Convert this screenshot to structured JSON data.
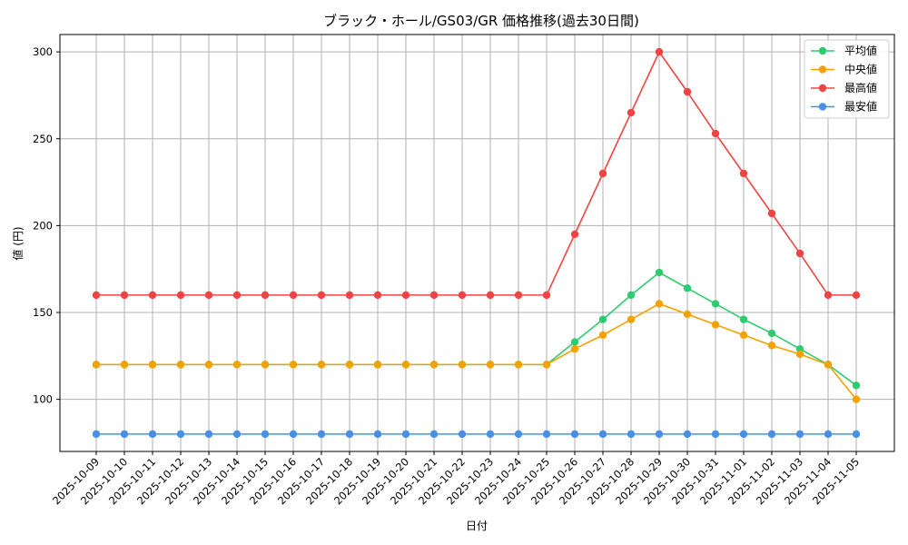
{
  "chart_data": {
    "type": "line",
    "title": "ブラック・ホール/GS03/GR 価格推移(過去30日間)",
    "xlabel": "日付",
    "ylabel": "値 (円)",
    "ylim": [
      70,
      310
    ],
    "yticks": [
      100,
      150,
      200,
      250,
      300
    ],
    "grid": true,
    "legend_position": "top-right",
    "categories": [
      "2025-10-09",
      "2025-10-10",
      "2025-10-11",
      "2025-10-12",
      "2025-10-13",
      "2025-10-14",
      "2025-10-15",
      "2025-10-16",
      "2025-10-17",
      "2025-10-18",
      "2025-10-19",
      "2025-10-20",
      "2025-10-21",
      "2025-10-22",
      "2025-10-23",
      "2025-10-24",
      "2025-10-25",
      "2025-10-26",
      "2025-10-27",
      "2025-10-28",
      "2025-10-29",
      "2025-10-30",
      "2025-10-31",
      "2025-11-01",
      "2025-11-02",
      "2025-11-03",
      "2025-11-04",
      "2025-11-05"
    ],
    "series": [
      {
        "name": "平均値",
        "color": "#2ecc71",
        "values": [
          120,
          120,
          120,
          120,
          120,
          120,
          120,
          120,
          120,
          120,
          120,
          120,
          120,
          120,
          120,
          120,
          120,
          133,
          146,
          160,
          173,
          164,
          155,
          146,
          138,
          129,
          120,
          108
        ]
      },
      {
        "name": "中央値",
        "color": "#f5a200",
        "values": [
          120,
          120,
          120,
          120,
          120,
          120,
          120,
          120,
          120,
          120,
          120,
          120,
          120,
          120,
          120,
          120,
          120,
          129,
          137,
          146,
          155,
          149,
          143,
          137,
          131,
          126,
          120,
          100
        ]
      },
      {
        "name": "最高値",
        "color": "#ef4444",
        "values": [
          160,
          160,
          160,
          160,
          160,
          160,
          160,
          160,
          160,
          160,
          160,
          160,
          160,
          160,
          160,
          160,
          160,
          195,
          230,
          265,
          300,
          277,
          253,
          230,
          207,
          184,
          160,
          160
        ]
      },
      {
        "name": "最安値",
        "color": "#4a90e2",
        "values": [
          80,
          80,
          80,
          80,
          80,
          80,
          80,
          80,
          80,
          80,
          80,
          80,
          80,
          80,
          80,
          80,
          80,
          80,
          80,
          80,
          80,
          80,
          80,
          80,
          80,
          80,
          80,
          80
        ]
      }
    ]
  }
}
